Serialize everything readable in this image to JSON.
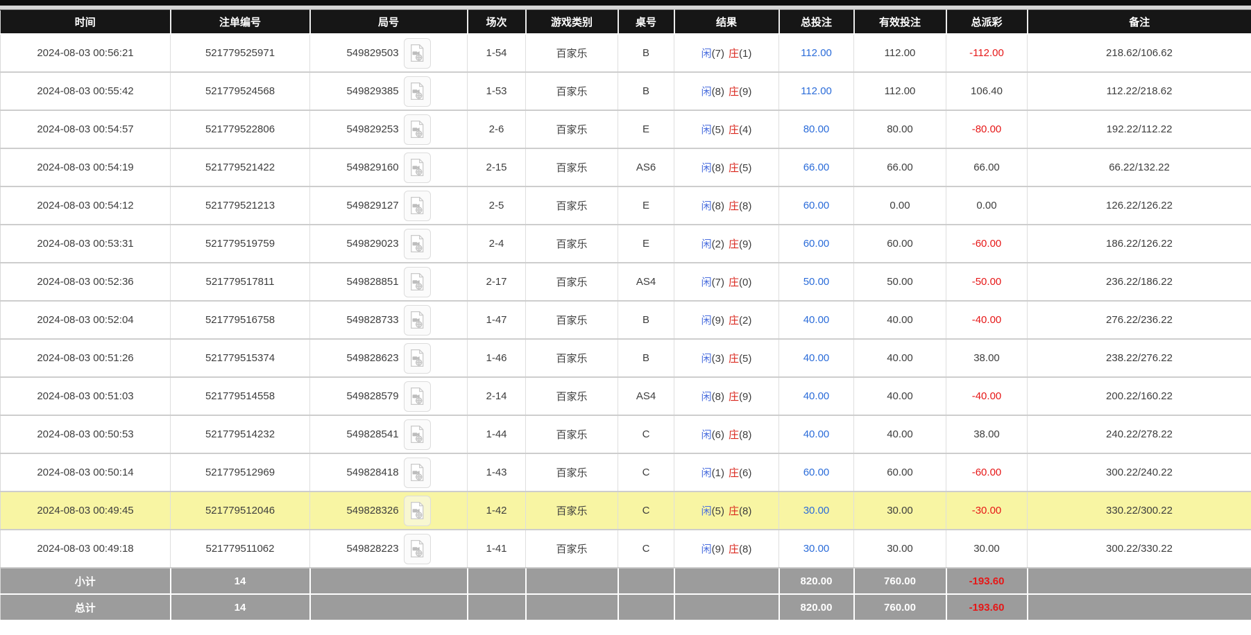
{
  "colors": {
    "header_bg": "#161616",
    "header_text": "#ffffff",
    "summary_bg": "#9c9c9c",
    "highlight_row_bg": "#f8f5a3",
    "bet_amount_blue": "#2b6cd9",
    "player_blue": "#4a6ede",
    "banker_red": "#d9261c",
    "negative_red": "#e61717"
  },
  "icons": {
    "round_replay": "video-file-icon"
  },
  "table": {
    "columns": [
      {
        "key": "time",
        "label": "时间"
      },
      {
        "key": "bet_id",
        "label": "注单编号"
      },
      {
        "key": "round_id",
        "label": "局号"
      },
      {
        "key": "session",
        "label": "场次"
      },
      {
        "key": "game",
        "label": "游戏类别"
      },
      {
        "key": "table_no",
        "label": "桌号"
      },
      {
        "key": "result",
        "label": "结果"
      },
      {
        "key": "total_bet",
        "label": "总投注"
      },
      {
        "key": "valid_bet",
        "label": "有效投注"
      },
      {
        "key": "payout",
        "label": "总派彩"
      },
      {
        "key": "remark",
        "label": "备注"
      }
    ],
    "rows": [
      {
        "time": "2024-08-03 00:56:21",
        "bet_id": "521779525971",
        "round_id": "549829503",
        "session": "1-54",
        "game": "百家乐",
        "table_no": "B",
        "result": {
          "player_label": "闲",
          "player_value": "(7)",
          "banker_label": "庄",
          "banker_value": "(1)"
        },
        "total_bet": "112.00",
        "valid_bet": "112.00",
        "payout": "-112.00",
        "remark": "218.62/106.62",
        "highlight": false
      },
      {
        "time": "2024-08-03 00:55:42",
        "bet_id": "521779524568",
        "round_id": "549829385",
        "session": "1-53",
        "game": "百家乐",
        "table_no": "B",
        "result": {
          "player_label": "闲",
          "player_value": "(8)",
          "banker_label": "庄",
          "banker_value": "(9)"
        },
        "total_bet": "112.00",
        "valid_bet": "112.00",
        "payout": "106.40",
        "remark": "112.22/218.62",
        "highlight": false
      },
      {
        "time": "2024-08-03 00:54:57",
        "bet_id": "521779522806",
        "round_id": "549829253",
        "session": "2-6",
        "game": "百家乐",
        "table_no": "E",
        "result": {
          "player_label": "闲",
          "player_value": "(5)",
          "banker_label": "庄",
          "banker_value": "(4)"
        },
        "total_bet": "80.00",
        "valid_bet": "80.00",
        "payout": "-80.00",
        "remark": "192.22/112.22",
        "highlight": false
      },
      {
        "time": "2024-08-03 00:54:19",
        "bet_id": "521779521422",
        "round_id": "549829160",
        "session": "2-15",
        "game": "百家乐",
        "table_no": "AS6",
        "result": {
          "player_label": "闲",
          "player_value": "(8)",
          "banker_label": "庄",
          "banker_value": "(5)"
        },
        "total_bet": "66.00",
        "valid_bet": "66.00",
        "payout": "66.00",
        "remark": "66.22/132.22",
        "highlight": false
      },
      {
        "time": "2024-08-03 00:54:12",
        "bet_id": "521779521213",
        "round_id": "549829127",
        "session": "2-5",
        "game": "百家乐",
        "table_no": "E",
        "result": {
          "player_label": "闲",
          "player_value": "(8)",
          "banker_label": "庄",
          "banker_value": "(8)"
        },
        "total_bet": "60.00",
        "valid_bet": "0.00",
        "payout": "0.00",
        "remark": "126.22/126.22",
        "highlight": false
      },
      {
        "time": "2024-08-03 00:53:31",
        "bet_id": "521779519759",
        "round_id": "549829023",
        "session": "2-4",
        "game": "百家乐",
        "table_no": "E",
        "result": {
          "player_label": "闲",
          "player_value": "(2)",
          "banker_label": "庄",
          "banker_value": "(9)"
        },
        "total_bet": "60.00",
        "valid_bet": "60.00",
        "payout": "-60.00",
        "remark": "186.22/126.22",
        "highlight": false
      },
      {
        "time": "2024-08-03 00:52:36",
        "bet_id": "521779517811",
        "round_id": "549828851",
        "session": "2-17",
        "game": "百家乐",
        "table_no": "AS4",
        "result": {
          "player_label": "闲",
          "player_value": "(7)",
          "banker_label": "庄",
          "banker_value": "(0)"
        },
        "total_bet": "50.00",
        "valid_bet": "50.00",
        "payout": "-50.00",
        "remark": "236.22/186.22",
        "highlight": false
      },
      {
        "time": "2024-08-03 00:52:04",
        "bet_id": "521779516758",
        "round_id": "549828733",
        "session": "1-47",
        "game": "百家乐",
        "table_no": "B",
        "result": {
          "player_label": "闲",
          "player_value": "(9)",
          "banker_label": "庄",
          "banker_value": "(2)"
        },
        "total_bet": "40.00",
        "valid_bet": "40.00",
        "payout": "-40.00",
        "remark": "276.22/236.22",
        "highlight": false
      },
      {
        "time": "2024-08-03 00:51:26",
        "bet_id": "521779515374",
        "round_id": "549828623",
        "session": "1-46",
        "game": "百家乐",
        "table_no": "B",
        "result": {
          "player_label": "闲",
          "player_value": "(3)",
          "banker_label": "庄",
          "banker_value": "(5)"
        },
        "total_bet": "40.00",
        "valid_bet": "40.00",
        "payout": "38.00",
        "remark": "238.22/276.22",
        "highlight": false
      },
      {
        "time": "2024-08-03 00:51:03",
        "bet_id": "521779514558",
        "round_id": "549828579",
        "session": "2-14",
        "game": "百家乐",
        "table_no": "AS4",
        "result": {
          "player_label": "闲",
          "player_value": "(8)",
          "banker_label": "庄",
          "banker_value": "(9)"
        },
        "total_bet": "40.00",
        "valid_bet": "40.00",
        "payout": "-40.00",
        "remark": "200.22/160.22",
        "highlight": false
      },
      {
        "time": "2024-08-03 00:50:53",
        "bet_id": "521779514232",
        "round_id": "549828541",
        "session": "1-44",
        "game": "百家乐",
        "table_no": "C",
        "result": {
          "player_label": "闲",
          "player_value": "(6)",
          "banker_label": "庄",
          "banker_value": "(8)"
        },
        "total_bet": "40.00",
        "valid_bet": "40.00",
        "payout": "38.00",
        "remark": "240.22/278.22",
        "highlight": false
      },
      {
        "time": "2024-08-03 00:50:14",
        "bet_id": "521779512969",
        "round_id": "549828418",
        "session": "1-43",
        "game": "百家乐",
        "table_no": "C",
        "result": {
          "player_label": "闲",
          "player_value": "(1)",
          "banker_label": "庄",
          "banker_value": "(6)"
        },
        "total_bet": "60.00",
        "valid_bet": "60.00",
        "payout": "-60.00",
        "remark": "300.22/240.22",
        "highlight": false
      },
      {
        "time": "2024-08-03 00:49:45",
        "bet_id": "521779512046",
        "round_id": "549828326",
        "session": "1-42",
        "game": "百家乐",
        "table_no": "C",
        "result": {
          "player_label": "闲",
          "player_value": "(5)",
          "banker_label": "庄",
          "banker_value": "(8)"
        },
        "total_bet": "30.00",
        "valid_bet": "30.00",
        "payout": "-30.00",
        "remark": "330.22/300.22",
        "highlight": true
      },
      {
        "time": "2024-08-03 00:49:18",
        "bet_id": "521779511062",
        "round_id": "549828223",
        "session": "1-41",
        "game": "百家乐",
        "table_no": "C",
        "result": {
          "player_label": "闲",
          "player_value": "(9)",
          "banker_label": "庄",
          "banker_value": "(8)"
        },
        "total_bet": "30.00",
        "valid_bet": "30.00",
        "payout": "30.00",
        "remark": "300.22/330.22",
        "highlight": false
      }
    ],
    "subtotal": {
      "label": "小计",
      "count": "14",
      "total_bet": "820.00",
      "valid_bet": "760.00",
      "payout": "-193.60"
    },
    "total": {
      "label": "总计",
      "count": "14",
      "total_bet": "820.00",
      "valid_bet": "760.00",
      "payout": "-193.60"
    }
  }
}
